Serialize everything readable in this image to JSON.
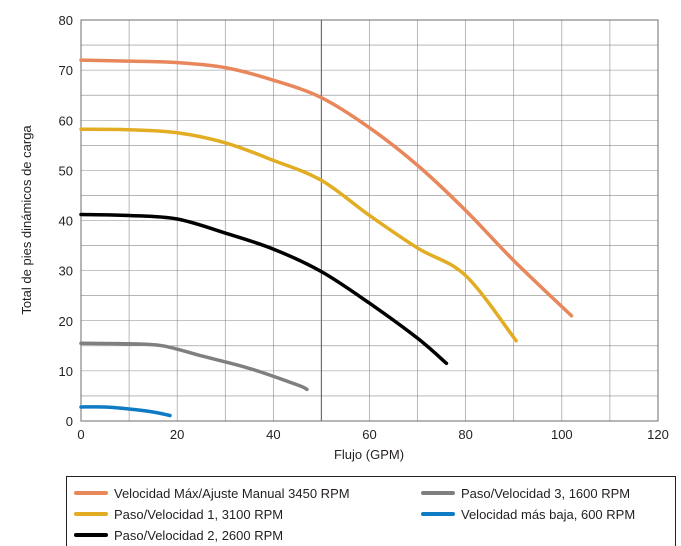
{
  "chart_data": {
    "type": "line",
    "title": "",
    "xlabel": "Flujo (GPM)",
    "ylabel": "Total de pies dinámicos de carga",
    "xlim": [
      0,
      120
    ],
    "ylim": [
      0,
      80
    ],
    "x_ticks": [
      0,
      20,
      40,
      60,
      80,
      100,
      120
    ],
    "y_ticks": [
      0,
      10,
      20,
      30,
      40,
      50,
      60,
      70,
      80
    ],
    "x_tick_labels": [
      "0",
      "20",
      "40",
      "60",
      "80",
      "100",
      "120"
    ],
    "y_tick_labels": [
      "0",
      "10",
      "20",
      "30",
      "40",
      "50",
      "60",
      "70",
      "80"
    ],
    "grid": true,
    "legend_position": "bottom",
    "series": [
      {
        "name": "Velocidad Máx/Ajuste Manual 3450 RPM",
        "color": "#e8875c",
        "x": [
          0,
          10,
          20,
          30,
          40,
          50,
          60,
          70,
          80,
          90,
          102
        ],
        "y": [
          72,
          71.8,
          71.5,
          70.5,
          68,
          64.5,
          58.5,
          51,
          42,
          32,
          21
        ]
      },
      {
        "name": "Paso/Velocidad 1, 3100 RPM",
        "color": "#e2ad22",
        "x": [
          0,
          10,
          20,
          30,
          40,
          50,
          60,
          70,
          80,
          90.5
        ],
        "y": [
          58.2,
          58.1,
          57.5,
          55.5,
          52,
          48,
          41,
          34.5,
          29,
          16
        ]
      },
      {
        "name": "Paso/Velocidad 2, 2600 RPM",
        "color": "#000000",
        "x": [
          0,
          10,
          20,
          30,
          40,
          50,
          60,
          70,
          76
        ],
        "y": [
          41.2,
          41,
          40.3,
          37.5,
          34.3,
          29.8,
          23.5,
          16.5,
          11.5
        ]
      },
      {
        "name": "Paso/Velocidad 3, 1600 RPM",
        "color": "#7f7f7f",
        "x": [
          0,
          10,
          17,
          25,
          35,
          45,
          47
        ],
        "y": [
          15.5,
          15.4,
          15,
          13,
          10.5,
          7.2,
          6.3
        ]
      },
      {
        "name": "Velocidad más baja, 600 RPM",
        "color": "#0f7bc4",
        "x": [
          0,
          5,
          10,
          15,
          18.5
        ],
        "y": [
          2.8,
          2.8,
          2.4,
          1.8,
          1.1
        ]
      }
    ]
  },
  "legend": [
    {
      "label": "Velocidad Máx/Ajuste Manual 3450 RPM",
      "color": "#e8875c"
    },
    {
      "label": "Paso/Velocidad 1, 3100 RPM",
      "color": "#e2ad22"
    },
    {
      "label": "Paso/Velocidad 2, 2600 RPM",
      "color": "#000000"
    },
    {
      "label": "Paso/Velocidad 3, 1600 RPM",
      "color": "#7f7f7f"
    },
    {
      "label": "Velocidad más baja, 600 RPM",
      "color": "#0f7bc4"
    }
  ]
}
